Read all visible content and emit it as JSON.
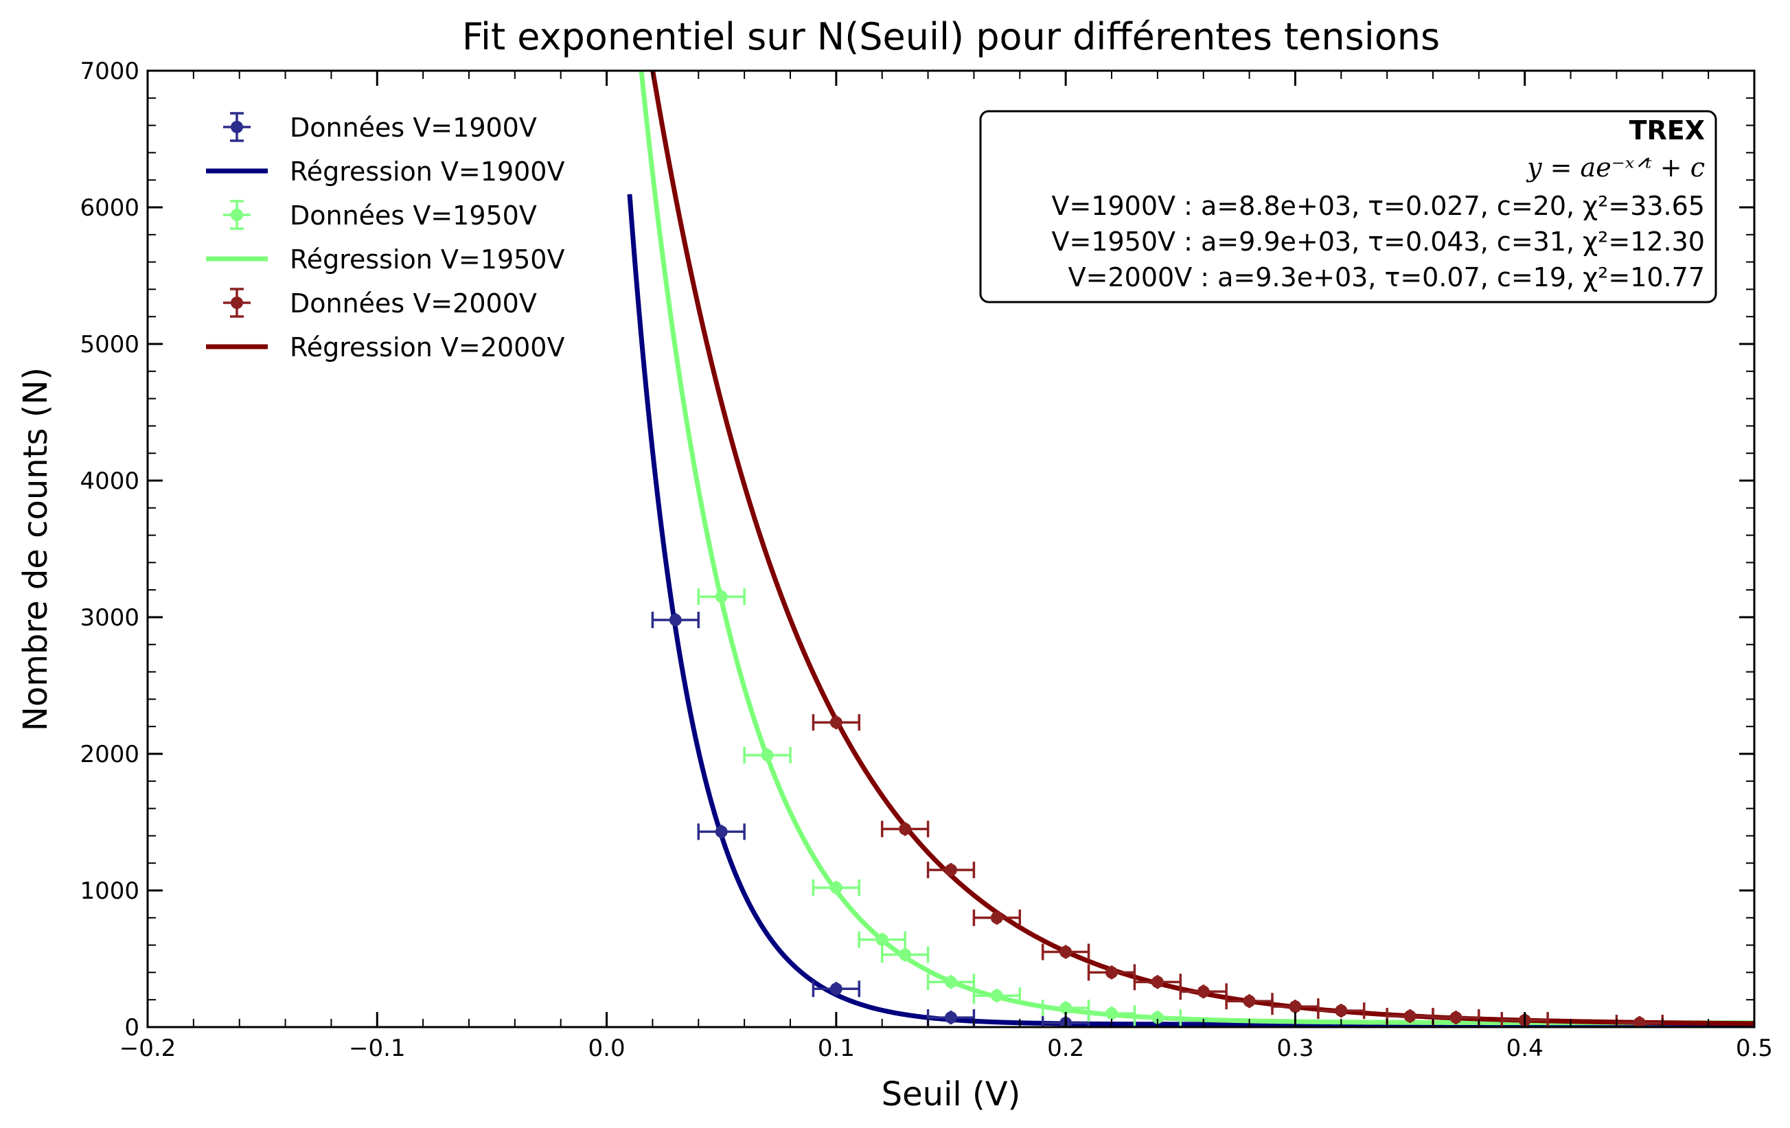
{
  "chart_data": {
    "type": "scatter",
    "title": "Fit exponentiel sur N(Seuil) pour différentes tensions",
    "xlabel": "Seuil (V)",
    "ylabel": "Nombre de counts (N)",
    "xlim": [
      -0.2,
      0.5
    ],
    "ylim": [
      0,
      7000
    ],
    "x_ticks": [
      -0.2,
      -0.1,
      0.0,
      0.1,
      0.2,
      0.3,
      0.4,
      0.5
    ],
    "x_tick_labels": [
      "−0.2",
      "−0.1",
      "0.0",
      "0.1",
      "0.2",
      "0.3",
      "0.4",
      "0.5"
    ],
    "y_ticks": [
      0,
      1000,
      2000,
      3000,
      4000,
      5000,
      6000,
      7000
    ],
    "y_tick_labels": [
      "0",
      "1000",
      "2000",
      "3000",
      "4000",
      "5000",
      "6000",
      "7000"
    ],
    "grid": false,
    "legend_position": "top-left",
    "series": [
      {
        "name": "Données V=1900V",
        "fit_name": "Régression V=1900V",
        "color": "#2c2c8c",
        "fit_color": "#00007f",
        "x_error": 0.01,
        "points": [
          [
            0.03,
            2980
          ],
          [
            0.05,
            1430
          ],
          [
            0.1,
            280
          ],
          [
            0.15,
            70
          ],
          [
            0.2,
            30
          ]
        ],
        "fit": {
          "a": 8800,
          "tau": 0.027,
          "c": 20,
          "x_start": 0.01
        }
      },
      {
        "name": "Données V=1950V",
        "fit_name": "Régression V=1950V",
        "color": "#80ff80",
        "fit_color": "#7cff79",
        "x_error": 0.01,
        "points": [
          [
            0.05,
            3150
          ],
          [
            0.07,
            1990
          ],
          [
            0.1,
            1020
          ],
          [
            0.12,
            640
          ],
          [
            0.13,
            530
          ],
          [
            0.15,
            330
          ],
          [
            0.17,
            230
          ],
          [
            0.2,
            140
          ],
          [
            0.22,
            100
          ],
          [
            0.24,
            70
          ]
        ],
        "fit": {
          "a": 9900,
          "tau": 0.043,
          "c": 31,
          "x_start": 0.01
        }
      },
      {
        "name": "Données V=2000V",
        "fit_name": "Régression V=2000V",
        "color": "#8c2020",
        "fit_color": "#7f0000",
        "x_error": 0.01,
        "points": [
          [
            0.1,
            2230
          ],
          [
            0.13,
            1450
          ],
          [
            0.15,
            1150
          ],
          [
            0.17,
            800
          ],
          [
            0.2,
            550
          ],
          [
            0.22,
            400
          ],
          [
            0.24,
            330
          ],
          [
            0.26,
            260
          ],
          [
            0.28,
            190
          ],
          [
            0.3,
            150
          ],
          [
            0.32,
            120
          ],
          [
            0.35,
            80
          ],
          [
            0.37,
            70
          ],
          [
            0.4,
            50
          ],
          [
            0.45,
            30
          ]
        ],
        "fit": {
          "a": 9300,
          "tau": 0.07,
          "c": 19,
          "x_start": 0.01
        }
      }
    ],
    "info_box": {
      "title": "TREX",
      "formula": "y = ae⁻ˣᐟᵗ + c",
      "lines": [
        "V=1900V : a=8.8e+03, τ=0.027, c=20, χ²=33.65",
        "V=1950V : a=9.9e+03, τ=0.043, c=31, χ²=12.30",
        "V=2000V : a=9.3e+03, τ=0.07, c=19, χ²=10.77"
      ]
    }
  }
}
